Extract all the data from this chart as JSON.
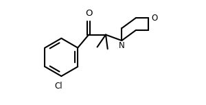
{
  "background_color": "#ffffff",
  "line_color": "#000000",
  "line_width": 1.5,
  "font_size": 8.5,
  "figsize": [
    3.0,
    1.53
  ],
  "dpi": 100,
  "xlim": [
    0.0,
    10.0
  ],
  "ylim": [
    0.0,
    5.5
  ]
}
